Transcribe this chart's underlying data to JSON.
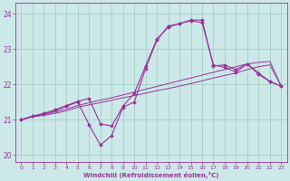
{
  "background_color": "#cde8e8",
  "grid_color": "#99ccbb",
  "line_color": "#993399",
  "xlabel": "Windchill (Refroidissement éolien,°C)",
  "xlim_min": -0.5,
  "xlim_max": 23.5,
  "ylim_min": 19.8,
  "ylim_max": 24.3,
  "yticks": [
    20,
    21,
    22,
    23,
    24
  ],
  "xticks": [
    0,
    1,
    2,
    3,
    4,
    5,
    6,
    7,
    8,
    9,
    10,
    11,
    12,
    13,
    14,
    15,
    16,
    17,
    18,
    19,
    20,
    21,
    22,
    23
  ],
  "s1_x": [
    0,
    1,
    2,
    3,
    4,
    5,
    6,
    7,
    8,
    9,
    10,
    11,
    12,
    13,
    14,
    15,
    16,
    17,
    18,
    19,
    20,
    21,
    22,
    23
  ],
  "s1_y": [
    21.0,
    21.08,
    21.12,
    21.18,
    21.25,
    21.35,
    21.42,
    21.48,
    21.55,
    21.62,
    21.68,
    21.75,
    21.82,
    21.88,
    21.95,
    22.02,
    22.1,
    22.18,
    22.25,
    22.32,
    22.42,
    22.5,
    22.55,
    21.95
  ],
  "s2_x": [
    0,
    1,
    2,
    3,
    4,
    5,
    6,
    7,
    8,
    9,
    10,
    11,
    12,
    13,
    14,
    15,
    16,
    17,
    18,
    19,
    20,
    21,
    22,
    23
  ],
  "s2_y": [
    21.0,
    21.08,
    21.15,
    21.22,
    21.3,
    21.4,
    21.48,
    21.55,
    21.62,
    21.7,
    21.78,
    21.86,
    21.94,
    22.02,
    22.1,
    22.18,
    22.26,
    22.34,
    22.42,
    22.5,
    22.58,
    22.62,
    22.65,
    21.95
  ],
  "s3_x": [
    0,
    1,
    2,
    3,
    4,
    5,
    6,
    7,
    8,
    9,
    10,
    11,
    12,
    13,
    14,
    15,
    16,
    17,
    18,
    19,
    20,
    21,
    22,
    23
  ],
  "s3_y": [
    21.0,
    21.1,
    21.15,
    21.25,
    21.38,
    21.5,
    20.85,
    20.28,
    20.55,
    21.35,
    21.5,
    22.45,
    23.25,
    23.65,
    23.72,
    23.8,
    23.75,
    22.55,
    22.48,
    22.35,
    22.58,
    22.32,
    22.08,
    21.95
  ],
  "s4_x": [
    0,
    1,
    2,
    3,
    4,
    5,
    6,
    7,
    8,
    9,
    10,
    11,
    12,
    13,
    14,
    15,
    16,
    17,
    18,
    19,
    20,
    21,
    22,
    23
  ],
  "s4_y": [
    21.0,
    21.1,
    21.18,
    21.28,
    21.4,
    21.52,
    21.6,
    20.88,
    20.82,
    21.38,
    21.75,
    22.52,
    23.28,
    23.62,
    23.72,
    23.82,
    23.82,
    22.52,
    22.55,
    22.42,
    22.58,
    22.28,
    22.08,
    21.95
  ]
}
